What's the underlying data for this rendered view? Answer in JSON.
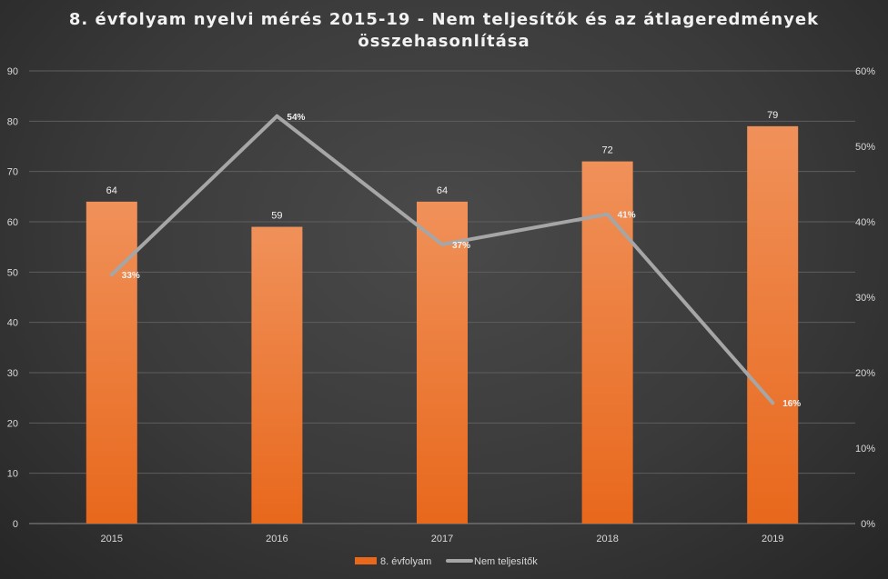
{
  "chart_data": {
    "type": "bar",
    "title_line1": "8. évfolyam  nyelvi mérés 2015-19 - Nem teljesítők  és az átlageredmények",
    "title_line2": "összehasonlítása",
    "categories": [
      "2015",
      "2016",
      "2017",
      "2018",
      "2019"
    ],
    "series": [
      {
        "name": "8. évfolyam",
        "type": "bar",
        "axis": "left",
        "values": [
          64,
          59,
          64,
          72,
          79
        ],
        "labels": [
          "64",
          "59",
          "64",
          "72",
          "79"
        ],
        "color": "#ed7d31"
      },
      {
        "name": "Nem teljesítők",
        "type": "line",
        "axis": "right",
        "values": [
          0.33,
          0.54,
          0.37,
          0.41,
          0.16
        ],
        "labels": [
          "33%",
          "54%",
          "37%",
          "41%",
          "16%"
        ],
        "color": "#a6a6a6"
      }
    ],
    "y_left": {
      "min": 0,
      "max": 90,
      "ticks": [
        "0",
        "10",
        "20",
        "30",
        "40",
        "50",
        "60",
        "70",
        "80",
        "90"
      ]
    },
    "y_right": {
      "min": 0,
      "max": 0.6,
      "ticks": [
        "0%",
        "10%",
        "20%",
        "30%",
        "40%",
        "50%",
        "60%"
      ]
    },
    "grid": true,
    "legend_position": "bottom"
  },
  "colors": {
    "bar_top": "#f0915a",
    "bar_bottom": "#e8681c",
    "line": "#a6a6a6",
    "grid": "#5e5e5e",
    "axis_text": "#d9d9d9",
    "label_text": "#f2f2f2"
  }
}
